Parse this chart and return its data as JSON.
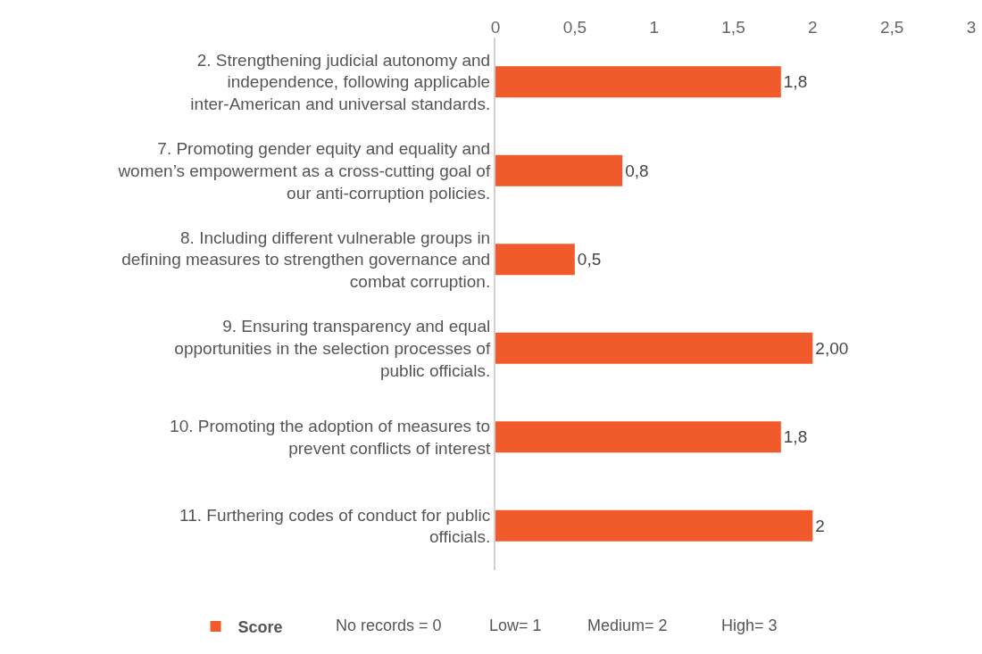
{
  "chart_data": {
    "type": "bar",
    "orientation": "horizontal",
    "categories": [
      "2. Strengthening judicial autonomy and independence, following applicable inter-American and universal standards.",
      "7. Promoting gender equity and equality and women’s empowerment as a cross-cutting goal of our anti-corruption policies.",
      "8. Including different vulnerable groups in defining measures to strengthen governance and combat corruption.",
      "9. Ensuring transparency and equal opportunities in the selection processes of public officials.",
      "10. Promoting the adoption of measures to prevent conflicts of interest",
      "11. Furthering codes of conduct for public officials."
    ],
    "series": [
      {
        "name": "Score",
        "color": "#f15a2b",
        "values": [
          1.8,
          0.8,
          0.5,
          2,
          1.8,
          2
        ],
        "value_labels": [
          "1,8",
          "0,8",
          "0,5",
          "2,00",
          "1,8",
          "2"
        ]
      }
    ],
    "xlim": [
      0,
      3
    ],
    "xticks": [
      0,
      {
        "value": 0.5,
        "label": "0,5"
      },
      1,
      {
        "value": 1.5,
        "label": "1,5"
      },
      2,
      {
        "value": 2.5,
        "label": "2,5"
      },
      3
    ],
    "grid": false,
    "legend": "bottom",
    "annotations": [
      "No records = 0",
      "Low= 1",
      "Medium= 2",
      "High= 3"
    ]
  }
}
